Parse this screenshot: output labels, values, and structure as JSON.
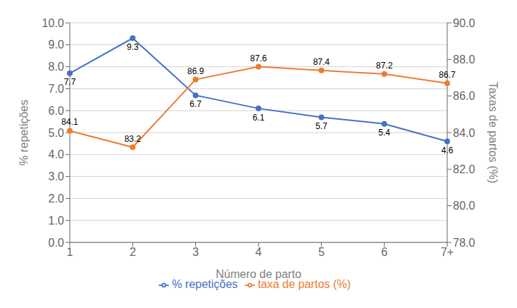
{
  "chart_data": {
    "type": "line",
    "categories": [
      "1",
      "2",
      "3",
      "4",
      "5",
      "6",
      "7+"
    ],
    "series": [
      {
        "name": "% repetições",
        "color": "#4472C4",
        "values": [
          7.7,
          9.3,
          6.7,
          6.1,
          5.7,
          5.4,
          4.6
        ],
        "marker": "circle"
      },
      {
        "name": "taxa de partos (%)",
        "color": "#ED7D31",
        "values": [
          84.1,
          83.2,
          86.9,
          87.6,
          87.4,
          87.2,
          86.7
        ],
        "marker": "circle",
        "axis": "y2"
      }
    ],
    "x_label": "Número de parto",
    "y_label": "% repetições",
    "y2_label": "Taxas de partos (%)",
    "ylim": [
      0.0,
      10.0
    ],
    "yticks": [
      {
        "value": 0.0,
        "label": "0.0"
      },
      {
        "value": 1.0,
        "label": "1.0"
      },
      {
        "value": 2.0,
        "label": "2.0"
      },
      {
        "value": 3.0,
        "label": "3.0"
      },
      {
        "value": 4.0,
        "label": "4.0"
      },
      {
        "value": 5.0,
        "label": "5.0"
      },
      {
        "value": 6.0,
        "label": "6.0"
      },
      {
        "value": 7.0,
        "label": "7.0"
      },
      {
        "value": 8.0,
        "label": "8.0"
      },
      {
        "value": 9.0,
        "label": "9.0"
      },
      {
        "value": 10.0,
        "label": "10.0"
      }
    ],
    "y2lim": [
      78.0,
      90.0
    ],
    "y2ticks": [
      {
        "value": 78.0,
        "label": "78.0"
      },
      {
        "value": 80.0,
        "label": "80.0"
      },
      {
        "value": 82.0,
        "label": "82.0"
      },
      {
        "value": 84.0,
        "label": "84.0"
      },
      {
        "value": 86.0,
        "label": "86.0"
      },
      {
        "value": 88.0,
        "label": "88.0"
      },
      {
        "value": 90.0,
        "label": "90.0"
      }
    ],
    "grid": true,
    "legend": "bottom",
    "data_labels": true
  }
}
